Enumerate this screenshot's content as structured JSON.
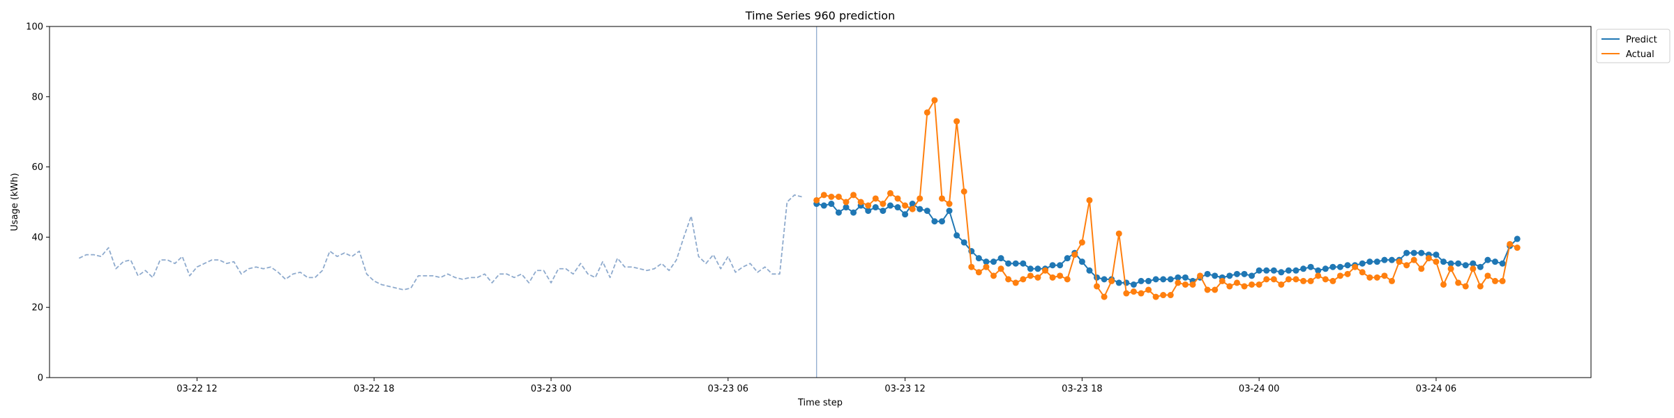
{
  "chart_data": {
    "type": "line",
    "title": "Time Series 960 prediction",
    "xlabel": "Time step",
    "ylabel": "Usage (kWh)",
    "ylim": [
      0,
      100
    ],
    "yticks": [
      0,
      20,
      40,
      60,
      80,
      100
    ],
    "xlim": [
      "03-22 07:00",
      "03-24 11:15"
    ],
    "xticks": [
      "03-22 12",
      "03-22 18",
      "03-23 00",
      "03-23 06",
      "03-23 12",
      "03-23 18",
      "03-24 00",
      "03-24 06"
    ],
    "x_interval_minutes": 15,
    "forecast_start": "03-23 09:00",
    "legend": {
      "position": "top-right",
      "entries": [
        "Predict",
        "Actual"
      ]
    },
    "grid": false,
    "colors": {
      "history": "#8eaacd",
      "predict": "#1f77b4",
      "actual": "#ff7f0e",
      "divider": "#8eaacd"
    },
    "series": [
      {
        "name": "",
        "role": "history",
        "style": "dashed",
        "start": "03-22 08:00",
        "values": [
          34,
          35,
          35,
          34.5,
          37,
          31,
          33,
          33.5,
          29,
          30.5,
          28.5,
          33.5,
          33.5,
          32.5,
          34.5,
          29,
          31.5,
          32.5,
          33.5,
          33.5,
          32.5,
          33,
          29.5,
          31,
          31.5,
          31,
          31.5,
          30,
          28,
          29.5,
          30,
          28.5,
          28.5,
          30.5,
          36,
          34.5,
          35.5,
          34.5,
          36,
          29.5,
          27.5,
          26.5,
          26,
          25.5,
          25,
          25.5,
          29,
          29,
          29,
          28.5,
          29.5,
          28.5,
          28,
          28.5,
          28.5,
          29.5,
          27,
          29.5,
          29.5,
          28.5,
          29.5,
          27,
          30.5,
          30.5,
          27,
          31,
          31,
          29.5,
          32.5,
          29.5,
          28.5,
          33,
          28.5,
          34,
          31.5,
          31.5,
          31,
          30.5,
          31,
          32.5,
          30.5,
          33.5,
          40,
          46,
          34.5,
          32.5,
          35,
          31,
          34.5,
          30,
          31.5,
          32.5,
          30,
          31.5,
          29.5,
          29.5,
          50,
          52,
          51.5
        ]
      },
      {
        "name": "Predict",
        "role": "predict",
        "style": "solid-markers",
        "start": "03-23 09:00",
        "values": [
          49.5,
          49,
          49.5,
          47,
          48.5,
          47,
          49,
          47.5,
          48.5,
          47.5,
          49,
          48.5,
          46.5,
          49.5,
          48,
          47.5,
          44.5,
          44.5,
          47.5,
          40.5,
          38.5,
          36,
          34,
          33,
          33,
          34,
          32.5,
          32.5,
          32.5,
          31,
          31,
          31,
          32,
          32,
          34,
          35.5,
          33,
          30.5,
          28.5,
          28,
          28,
          27,
          27,
          26.5,
          27.5,
          27.5,
          28,
          28,
          28,
          28.5,
          28.5,
          27.5,
          28.5,
          29.5,
          29,
          28.5,
          29,
          29.5,
          29.5,
          29,
          30.5,
          30.5,
          30.5,
          30,
          30.5,
          30.5,
          31,
          31.5,
          30.5,
          31,
          31.5,
          31.5,
          32,
          32,
          32.5,
          33,
          33,
          33.5,
          33.5,
          33.5,
          35.5,
          35.5,
          35.5,
          35,
          35,
          33,
          32.5,
          32.5,
          32,
          32.5,
          31.5,
          33.5,
          33,
          32.5,
          37.5,
          39.5
        ]
      },
      {
        "name": "Actual",
        "role": "actual",
        "style": "solid-markers",
        "start": "03-23 09:00",
        "values": [
          50.5,
          52,
          51.5,
          51.5,
          50,
          52,
          50,
          49,
          51,
          49.5,
          52.5,
          51,
          49,
          48,
          51,
          75.5,
          79,
          51,
          49.5,
          73,
          53,
          31.5,
          30,
          31.5,
          29,
          31,
          28,
          27,
          28,
          29,
          28.5,
          30.5,
          28.5,
          29,
          28,
          35,
          38.5,
          50.5,
          26,
          23,
          27.5,
          41,
          24,
          24.5,
          24,
          25,
          23,
          23.5,
          23.5,
          27,
          26.5,
          26.5,
          29,
          25,
          25,
          27.5,
          26,
          27,
          26,
          26.5,
          26.5,
          28,
          28,
          26.5,
          28,
          28,
          27.5,
          27.5,
          29,
          28,
          27.5,
          29,
          29.5,
          31.5,
          30,
          28.5,
          28.5,
          29,
          27.5,
          33,
          32,
          33.5,
          31,
          34,
          33,
          26.5,
          31,
          27,
          26,
          31,
          26,
          29,
          27.5,
          27.5,
          38,
          37
        ]
      }
    ]
  }
}
